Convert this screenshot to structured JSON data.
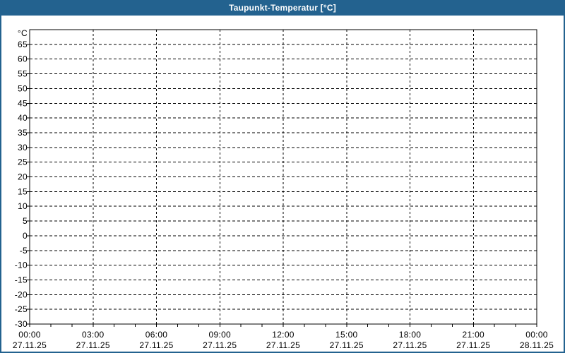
{
  "window": {
    "title": "Taupunkt-Temperatur [°C]"
  },
  "colors": {
    "titlebar_bg": "#23628F",
    "title_text": "#FFFFFF",
    "frame_border": "#23628F",
    "page_bg": "#FFFFFF",
    "plot_bg": "#FFFFFF",
    "grid_line": "#000000",
    "axis_line": "#000000",
    "label_text": "#000000"
  },
  "chart_data": {
    "type": "line",
    "title": "Taupunkt-Temperatur [°C]",
    "y_unit": "°C",
    "ylim": [
      -30,
      70
    ],
    "y_ticks": [
      65,
      60,
      55,
      50,
      45,
      40,
      35,
      30,
      25,
      20,
      15,
      10,
      5,
      0,
      -5,
      -10,
      -15,
      -20,
      -25,
      -30
    ],
    "y_grid_dashed_from": 65,
    "y_grid_dashed_to": -25,
    "x_range_hours": [
      0,
      24
    ],
    "x_major_step_hours": 3,
    "x_minor_step_hours": 1,
    "x_ticks": [
      {
        "time": "00:00",
        "date": "27.11.25"
      },
      {
        "time": "03:00",
        "date": "27.11.25"
      },
      {
        "time": "06:00",
        "date": "27.11.25"
      },
      {
        "time": "09:00",
        "date": "27.11.25"
      },
      {
        "time": "12:00",
        "date": "27.11.25"
      },
      {
        "time": "15:00",
        "date": "27.11.25"
      },
      {
        "time": "18:00",
        "date": "27.11.25"
      },
      {
        "time": "21:00",
        "date": "27.11.25"
      },
      {
        "time": "00:00",
        "date": "28.11.25"
      }
    ],
    "grid": {
      "horizontal": "dashed",
      "vertical": "dashed",
      "on": true
    },
    "legend": "none",
    "series": []
  }
}
